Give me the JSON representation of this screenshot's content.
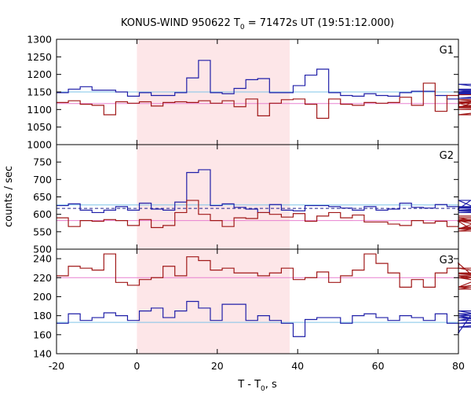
{
  "chart_data": {
    "type": "line",
    "title": "KONUS-WIND 950622 T",
    "title_subscript": "0",
    "title_suffix": " = 71472s UT (19:51:12.000)",
    "xlabel": "T - T",
    "xlabel_subscript": "0",
    "xlabel_suffix": ", s",
    "ylabel": "counts / sec",
    "xlim": [
      -20,
      80
    ],
    "xticks": [
      "-20",
      "0",
      "20",
      "40",
      "60",
      "80"
    ],
    "highlight_interval": [
      0,
      38
    ],
    "colors": {
      "highlight": "#fde6e8",
      "blue": "#1f1fa8",
      "red": "#a01818",
      "light_blue": "#7fc4e8",
      "pink": "#e880d0",
      "dashed": "#1f1f8f"
    },
    "panels": [
      {
        "label": "G1",
        "ylim": [
          1000,
          1300
        ],
        "yticks": [
          "1000",
          "1050",
          "1100",
          "1150",
          "1200",
          "1250",
          "1300"
        ],
        "bin_start": -20,
        "bin_width": 2.944,
        "series": [
          {
            "color_key": "blue",
            "values": [
              1148,
              1158,
              1165,
              1155,
              1155,
              1150,
              1138,
              1148,
              1140,
              1140,
              1148,
              1190,
              1240,
              1148,
              1145,
              1160,
              1185,
              1188,
              1148,
              1148,
              1168,
              1198,
              1215,
              1148,
              1140,
              1138,
              1145,
              1140,
              1138,
              1148,
              1152,
              1152,
              1140,
              1130,
              1148,
              1150,
              1155,
              1145,
              1148,
              1172,
              1148,
              1145,
              1132,
              1158
            ]
          },
          {
            "color_key": "red",
            "values": [
              1120,
              1125,
              1115,
              1112,
              1085,
              1122,
              1118,
              1122,
              1110,
              1120,
              1122,
              1120,
              1125,
              1118,
              1125,
              1108,
              1130,
              1082,
              1118,
              1128,
              1130,
              1115,
              1075,
              1130,
              1115,
              1112,
              1120,
              1118,
              1120,
              1135,
              1112,
              1175,
              1095,
              1140,
              1105,
              1118,
              1128,
              1118,
              1085,
              1105,
              1122,
              1100,
              1108,
              1142
            ]
          }
        ],
        "refs": [
          {
            "color_key": "light_blue",
            "value": 1150,
            "style": "solid"
          },
          {
            "color_key": "pink",
            "value": 1117,
            "style": "solid"
          }
        ]
      },
      {
        "label": "G2",
        "ylim": [
          500,
          800
        ],
        "yticks": [
          "500",
          "550",
          "600",
          "650",
          "700",
          "750"
        ],
        "bin_start": -20,
        "bin_width": 2.944,
        "series": [
          {
            "color_key": "blue",
            "values": [
              625,
              630,
              612,
              605,
              612,
              622,
              612,
              632,
              615,
              612,
              635,
              720,
              728,
              625,
              630,
              620,
              615,
              605,
              628,
              612,
              610,
              625,
              625,
              622,
              618,
              612,
              622,
              612,
              615,
              632,
              620,
              618,
              628,
              622,
              615,
              640,
              610,
              620,
              612,
              622,
              605,
              618,
              612,
              622
            ]
          },
          {
            "color_key": "red",
            "values": [
              590,
              565,
              582,
              580,
              585,
              582,
              568,
              585,
              562,
              568,
              605,
              640,
              600,
              582,
              565,
              590,
              588,
              605,
              600,
              592,
              602,
              580,
              595,
              605,
              590,
              598,
              578,
              578,
              572,
              568,
              582,
              575,
              580,
              565,
              580,
              558,
              582,
              558,
              580,
              590,
              552,
              585,
              560,
              595
            ]
          }
        ],
        "refs": [
          {
            "color_key": "light_blue",
            "value": 627,
            "style": "solid"
          },
          {
            "color_key": "pink",
            "value": 582,
            "style": "solid"
          },
          {
            "color_key": "dashed",
            "value": 617,
            "style": "dashed"
          }
        ]
      },
      {
        "label": "G3",
        "ylim": [
          140,
          250
        ],
        "yticks": [
          "140",
          "160",
          "180",
          "200",
          "220",
          "240"
        ],
        "bin_start": -20,
        "bin_width": 2.944,
        "series": [
          {
            "color_key": "blue",
            "values": [
              172,
              182,
              175,
              178,
              183,
              180,
              175,
              185,
              188,
              178,
              185,
              195,
              188,
              175,
              192,
              192,
              175,
              180,
              175,
              172,
              158,
              176,
              178,
              178,
              172,
              180,
              182,
              178,
              175,
              180,
              178,
              175,
              182,
              172,
              162,
              180,
              175,
              182,
              175,
              185,
              172,
              178,
              168,
              180
            ]
          },
          {
            "color_key": "red",
            "values": [
              222,
              232,
              230,
              228,
              245,
              215,
              212,
              218,
              220,
              232,
              222,
              242,
              238,
              228,
              230,
              225,
              225,
              222,
              225,
              230,
              218,
              220,
              226,
              215,
              222,
              228,
              245,
              235,
              225,
              210,
              218,
              210,
              225,
              230,
              235,
              224,
              222,
              210,
              230,
              220,
              208,
              222,
              210,
              225
            ]
          }
        ],
        "refs": [
          {
            "color_key": "light_blue",
            "value": 173,
            "style": "solid"
          },
          {
            "color_key": "pink",
            "value": 220,
            "style": "solid"
          }
        ]
      }
    ]
  }
}
